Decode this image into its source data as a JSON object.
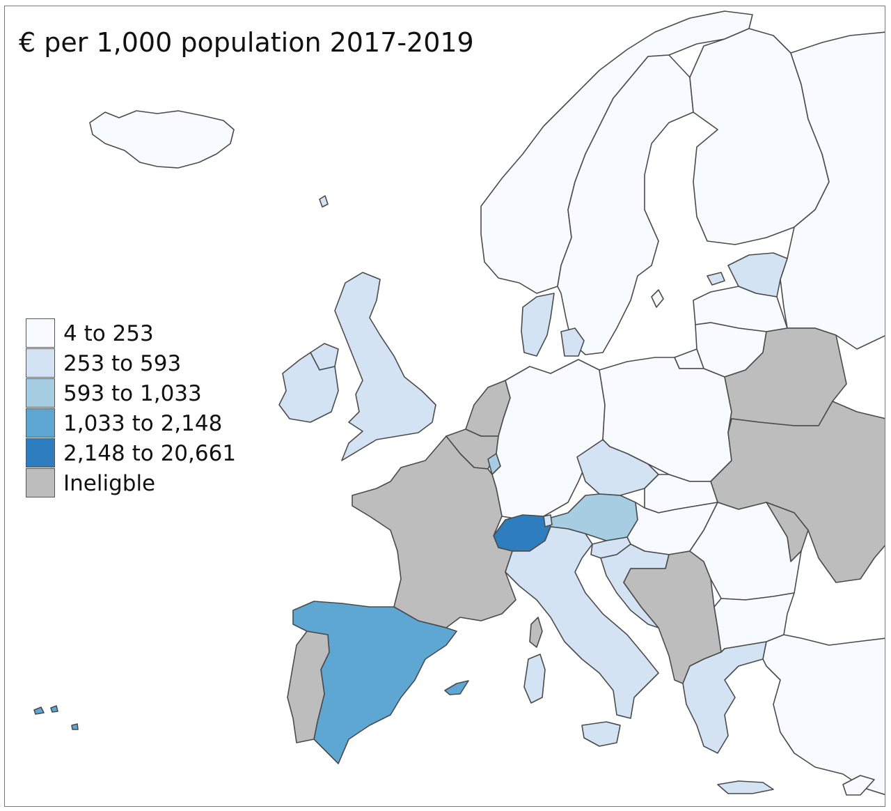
{
  "title": "€ per 1,000 population 2017-2019",
  "legend": [
    {
      "key": "c1",
      "label": "4 to 253",
      "color": "#f7fbff"
    },
    {
      "key": "c2",
      "label": "253 to 593",
      "color": "#d4e3f3"
    },
    {
      "key": "c3",
      "label": "593 to 1,033",
      "color": "#a7cde3"
    },
    {
      "key": "c4",
      "label": "1,033 to 2,148",
      "color": "#5fa7d3"
    },
    {
      "key": "c5",
      "label": "2,148 to 20,661",
      "color": "#2e7ebf"
    },
    {
      "key": "na",
      "label": "Ineligble",
      "color": "#bdbdbd"
    }
  ],
  "regions": [
    {
      "name": "iceland",
      "class": "c1"
    },
    {
      "name": "norway",
      "class": "c1"
    },
    {
      "name": "sweden",
      "class": "c1"
    },
    {
      "name": "finland",
      "class": "c1"
    },
    {
      "name": "russia-north",
      "class": "c1"
    },
    {
      "name": "estonia",
      "class": "c2"
    },
    {
      "name": "latvia",
      "class": "c1"
    },
    {
      "name": "lithuania",
      "class": "c1"
    },
    {
      "name": "denmark",
      "class": "c2"
    },
    {
      "name": "united-kingdom",
      "class": "c2"
    },
    {
      "name": "ireland",
      "class": "c2"
    },
    {
      "name": "netherlands",
      "class": "na"
    },
    {
      "name": "belgium",
      "class": "na"
    },
    {
      "name": "luxembourg",
      "class": "c3"
    },
    {
      "name": "germany",
      "class": "c1"
    },
    {
      "name": "poland",
      "class": "c1"
    },
    {
      "name": "belarus",
      "class": "na"
    },
    {
      "name": "ukraine",
      "class": "na"
    },
    {
      "name": "moldova",
      "class": "na"
    },
    {
      "name": "czechia",
      "class": "c2"
    },
    {
      "name": "slovakia",
      "class": "c1"
    },
    {
      "name": "austria",
      "class": "c3"
    },
    {
      "name": "switzerland",
      "class": "c5"
    },
    {
      "name": "liechtenstein",
      "class": "c2"
    },
    {
      "name": "france",
      "class": "na"
    },
    {
      "name": "spain",
      "class": "c4"
    },
    {
      "name": "portugal",
      "class": "na"
    },
    {
      "name": "italy",
      "class": "c2"
    },
    {
      "name": "sardinia",
      "class": "c2"
    },
    {
      "name": "corsica",
      "class": "na"
    },
    {
      "name": "slovenia",
      "class": "c2"
    },
    {
      "name": "croatia",
      "class": "c2"
    },
    {
      "name": "hungary",
      "class": "c1"
    },
    {
      "name": "romania",
      "class": "c1"
    },
    {
      "name": "bulgaria",
      "class": "c1"
    },
    {
      "name": "turkey",
      "class": "c1"
    },
    {
      "name": "greece",
      "class": "c2"
    },
    {
      "name": "crete",
      "class": "c2"
    },
    {
      "name": "western-balkans",
      "class": "na"
    },
    {
      "name": "cyprus",
      "class": "c1"
    }
  ]
}
